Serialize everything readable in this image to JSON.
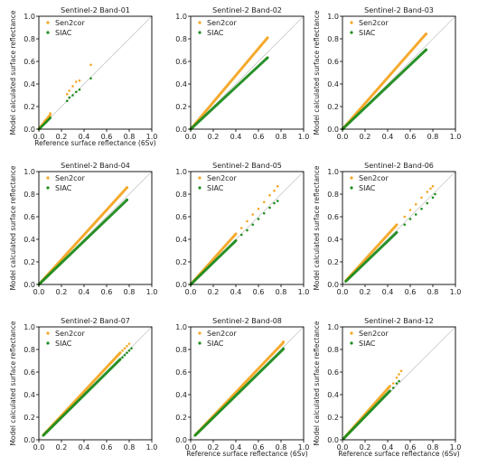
{
  "colors": {
    "sen2cor": "#f5a623",
    "siac": "#1e8c1e",
    "diag": "#c8c8c8",
    "axis": "#000000"
  },
  "chart_data": [
    {
      "type": "scatter",
      "title": "Sentinel-2 Band-01",
      "xlabel": "Reference surface reflectance (6Sv)",
      "ylabel": "Model calculated surface reflectance",
      "xlim": [
        0,
        1
      ],
      "ylim": [
        0,
        1
      ],
      "xticks": [
        "0.0",
        "0.2",
        "0.4",
        "0.6",
        "0.8",
        "1.0"
      ],
      "yticks": [
        "0.0",
        "0.2",
        "0.4",
        "0.6",
        "0.8",
        "1.0"
      ],
      "legend": "top-left",
      "grid": false,
      "series": [
        {
          "name": "Sen2cor",
          "dense_x": [
            0.0,
            0.1
          ],
          "slope": 1.25,
          "x": [
            0.01,
            0.02,
            0.03,
            0.04,
            0.05,
            0.06,
            0.07,
            0.08,
            0.09,
            0.1,
            0.25,
            0.27,
            0.3,
            0.33,
            0.36,
            0.46
          ],
          "y": [
            0.02,
            0.03,
            0.04,
            0.05,
            0.07,
            0.08,
            0.09,
            0.1,
            0.11,
            0.14,
            0.31,
            0.34,
            0.38,
            0.42,
            0.43,
            0.57
          ]
        },
        {
          "name": "SIAC",
          "dense_x": [
            0.0,
            0.1
          ],
          "slope": 1.0,
          "x": [
            0.01,
            0.02,
            0.03,
            0.04,
            0.05,
            0.06,
            0.07,
            0.08,
            0.09,
            0.1,
            0.25,
            0.27,
            0.3,
            0.33,
            0.36,
            0.46
          ],
          "y": [
            0.01,
            0.02,
            0.03,
            0.04,
            0.05,
            0.06,
            0.07,
            0.08,
            0.09,
            0.1,
            0.25,
            0.28,
            0.3,
            0.33,
            0.35,
            0.45
          ]
        }
      ]
    },
    {
      "type": "scatter",
      "title": "Sentinel-2 Band-02",
      "xlabel": "",
      "ylabel": "",
      "xlim": [
        0,
        1
      ],
      "ylim": [
        0,
        1
      ],
      "xticks": [
        "0.0",
        "0.2",
        "0.4",
        "0.6",
        "0.8",
        "1.0"
      ],
      "yticks": [
        "0.0",
        "0.2",
        "0.4",
        "0.6",
        "0.8",
        "1.0"
      ],
      "legend": "top-left",
      "grid": false,
      "series": [
        {
          "name": "Sen2cor",
          "dense_x": [
            0.0,
            0.68
          ],
          "slope": 1.19,
          "x": [
            0.62,
            0.68
          ],
          "y": [
            0.74,
            0.81
          ]
        },
        {
          "name": "SIAC",
          "dense_x": [
            0.0,
            0.68
          ],
          "slope": 0.93,
          "x": [
            0.68
          ],
          "y": [
            0.63
          ]
        }
      ]
    },
    {
      "type": "scatter",
      "title": "Sentinel-2 Band-03",
      "xlabel": "",
      "ylabel": "Model calculated surface reflectance",
      "xlim": [
        0,
        1
      ],
      "ylim": [
        0,
        1
      ],
      "xticks": [
        "0.0",
        "0.2",
        "0.4",
        "0.6",
        "0.8",
        "1.0"
      ],
      "yticks": [
        "0.0",
        "0.2",
        "0.4",
        "0.6",
        "0.8",
        "1.0"
      ],
      "legend": "top-left",
      "grid": false,
      "series": [
        {
          "name": "Sen2cor",
          "dense_x": [
            0.0,
            0.74
          ],
          "slope": 1.14,
          "x": [
            0.74
          ],
          "y": [
            0.84
          ]
        },
        {
          "name": "SIAC",
          "dense_x": [
            0.0,
            0.74
          ],
          "slope": 0.95,
          "x": [
            0.74
          ],
          "y": [
            0.7
          ]
        }
      ]
    },
    {
      "type": "scatter",
      "title": "Sentinel-2 Band-04",
      "xlabel": "",
      "ylabel": "Model calculated surface reflectance",
      "xlim": [
        0,
        1
      ],
      "ylim": [
        0,
        1
      ],
      "xticks": [
        "0.0",
        "0.2",
        "0.4",
        "0.6",
        "0.8",
        "1.0"
      ],
      "yticks": [
        "0.0",
        "0.2",
        "0.4",
        "0.6",
        "0.8",
        "1.0"
      ],
      "legend": "top-left",
      "grid": false,
      "series": [
        {
          "name": "Sen2cor",
          "dense_x": [
            0.0,
            0.78
          ],
          "slope": 1.1,
          "x": [
            0.78
          ],
          "y": [
            0.86
          ]
        },
        {
          "name": "SIAC",
          "dense_x": [
            0.0,
            0.78
          ],
          "slope": 0.96,
          "x": [
            0.78
          ],
          "y": [
            0.75
          ]
        }
      ]
    },
    {
      "type": "scatter",
      "title": "Sentinel-2 Band-05",
      "xlabel": "",
      "ylabel": "",
      "xlim": [
        0,
        1
      ],
      "ylim": [
        0,
        1
      ],
      "xticks": [
        "0.0",
        "0.2",
        "0.4",
        "0.6",
        "0.8",
        "1.0"
      ],
      "yticks": [
        "0.0",
        "0.2",
        "0.4",
        "0.6",
        "0.8",
        "1.0"
      ],
      "legend": "top-left",
      "grid": false,
      "series": [
        {
          "name": "Sen2cor",
          "dense_x": [
            0.0,
            0.4
          ],
          "slope": 1.12,
          "x": [
            0.45,
            0.5,
            0.55,
            0.6,
            0.65,
            0.7,
            0.74,
            0.77
          ],
          "y": [
            0.5,
            0.56,
            0.62,
            0.67,
            0.73,
            0.79,
            0.83,
            0.87
          ]
        },
        {
          "name": "SIAC",
          "dense_x": [
            0.0,
            0.4
          ],
          "slope": 0.97,
          "x": [
            0.45,
            0.5,
            0.55,
            0.6,
            0.65,
            0.7,
            0.74,
            0.77
          ],
          "y": [
            0.44,
            0.48,
            0.53,
            0.58,
            0.63,
            0.68,
            0.72,
            0.74
          ]
        }
      ]
    },
    {
      "type": "scatter",
      "title": "Sentinel-2 Band-06",
      "xlabel": "",
      "ylabel": "Model calculated surface reflectance",
      "xlim": [
        0,
        1
      ],
      "ylim": [
        0,
        1
      ],
      "xticks": [
        "0.0",
        "0.2",
        "0.4",
        "0.6",
        "0.8",
        "1.0"
      ],
      "yticks": [
        "0.0",
        "0.2",
        "0.4",
        "0.6",
        "0.8",
        "1.0"
      ],
      "legend": "top-left",
      "grid": false,
      "series": [
        {
          "name": "Sen2cor",
          "dense_x": [
            0.03,
            0.48
          ],
          "slope": 1.1,
          "x": [
            0.55,
            0.6,
            0.65,
            0.7,
            0.75,
            0.78,
            0.8
          ],
          "y": [
            0.6,
            0.66,
            0.71,
            0.77,
            0.82,
            0.85,
            0.87
          ]
        },
        {
          "name": "SIAC",
          "dense_x": [
            0.03,
            0.48
          ],
          "slope": 0.96,
          "x": [
            0.55,
            0.6,
            0.65,
            0.7,
            0.75,
            0.8,
            0.82
          ],
          "y": [
            0.53,
            0.58,
            0.62,
            0.67,
            0.72,
            0.77,
            0.8
          ]
        }
      ]
    },
    {
      "type": "scatter",
      "title": "Sentinel-2 Band-07",
      "xlabel": "",
      "ylabel": "Model calculated surface reflectance",
      "xlim": [
        0,
        1
      ],
      "ylim": [
        0,
        1
      ],
      "xticks": [
        "0.0",
        "0.2",
        "0.4",
        "0.6",
        "0.8",
        "1.0"
      ],
      "yticks": [
        "0.0",
        "0.2",
        "0.4",
        "0.6",
        "0.8",
        "1.0"
      ],
      "legend": "top-left",
      "grid": false,
      "series": [
        {
          "name": "Sen2cor",
          "dense_x": [
            0.04,
            0.72
          ],
          "slope": 1.07,
          "x": [
            0.74,
            0.76,
            0.78,
            0.8
          ],
          "y": [
            0.79,
            0.81,
            0.83,
            0.85
          ]
        },
        {
          "name": "SIAC",
          "dense_x": [
            0.04,
            0.72
          ],
          "slope": 0.99,
          "x": [
            0.74,
            0.76,
            0.78,
            0.8,
            0.82
          ],
          "y": [
            0.73,
            0.75,
            0.77,
            0.79,
            0.81
          ]
        }
      ]
    },
    {
      "type": "scatter",
      "title": "Sentinel-2 Band-08",
      "xlabel": "Reference surface reflectance (6Sv)",
      "ylabel": "",
      "xlim": [
        0,
        1
      ],
      "ylim": [
        0,
        1
      ],
      "xticks": [
        "0.0",
        "0.2",
        "0.4",
        "0.6",
        "0.8",
        "1.0"
      ],
      "yticks": [
        "0.0",
        "0.2",
        "0.4",
        "0.6",
        "0.8",
        "1.0"
      ],
      "legend": "top-left",
      "grid": false,
      "series": [
        {
          "name": "Sen2cor",
          "dense_x": [
            0.04,
            0.82
          ],
          "slope": 1.05,
          "x": [
            0.82
          ],
          "y": [
            0.87
          ]
        },
        {
          "name": "SIAC",
          "dense_x": [
            0.04,
            0.82
          ],
          "slope": 0.98,
          "x": [
            0.82
          ],
          "y": [
            0.81
          ]
        }
      ]
    },
    {
      "type": "scatter",
      "title": "Sentinel-2 Band-12",
      "xlabel": "Reference surface reflectance (6Sv)",
      "ylabel": "Model calculated surface reflectance",
      "xlim": [
        0,
        1
      ],
      "ylim": [
        0,
        1
      ],
      "xticks": [
        "0.0",
        "0.2",
        "0.4",
        "0.6",
        "0.8",
        "1.0"
      ],
      "yticks": [
        "0.0",
        "0.2",
        "0.4",
        "0.6",
        "0.8",
        "1.0"
      ],
      "legend": "top-left",
      "grid": false,
      "series": [
        {
          "name": "Sen2cor",
          "dense_x": [
            0.01,
            0.42
          ],
          "slope": 1.13,
          "x": [
            0.45,
            0.48,
            0.5,
            0.52
          ],
          "y": [
            0.5,
            0.55,
            0.58,
            0.61
          ]
        },
        {
          "name": "SIAC",
          "dense_x": [
            0.01,
            0.42
          ],
          "slope": 1.03,
          "x": [
            0.45,
            0.48,
            0.5
          ],
          "y": [
            0.46,
            0.5,
            0.52
          ]
        }
      ]
    }
  ]
}
